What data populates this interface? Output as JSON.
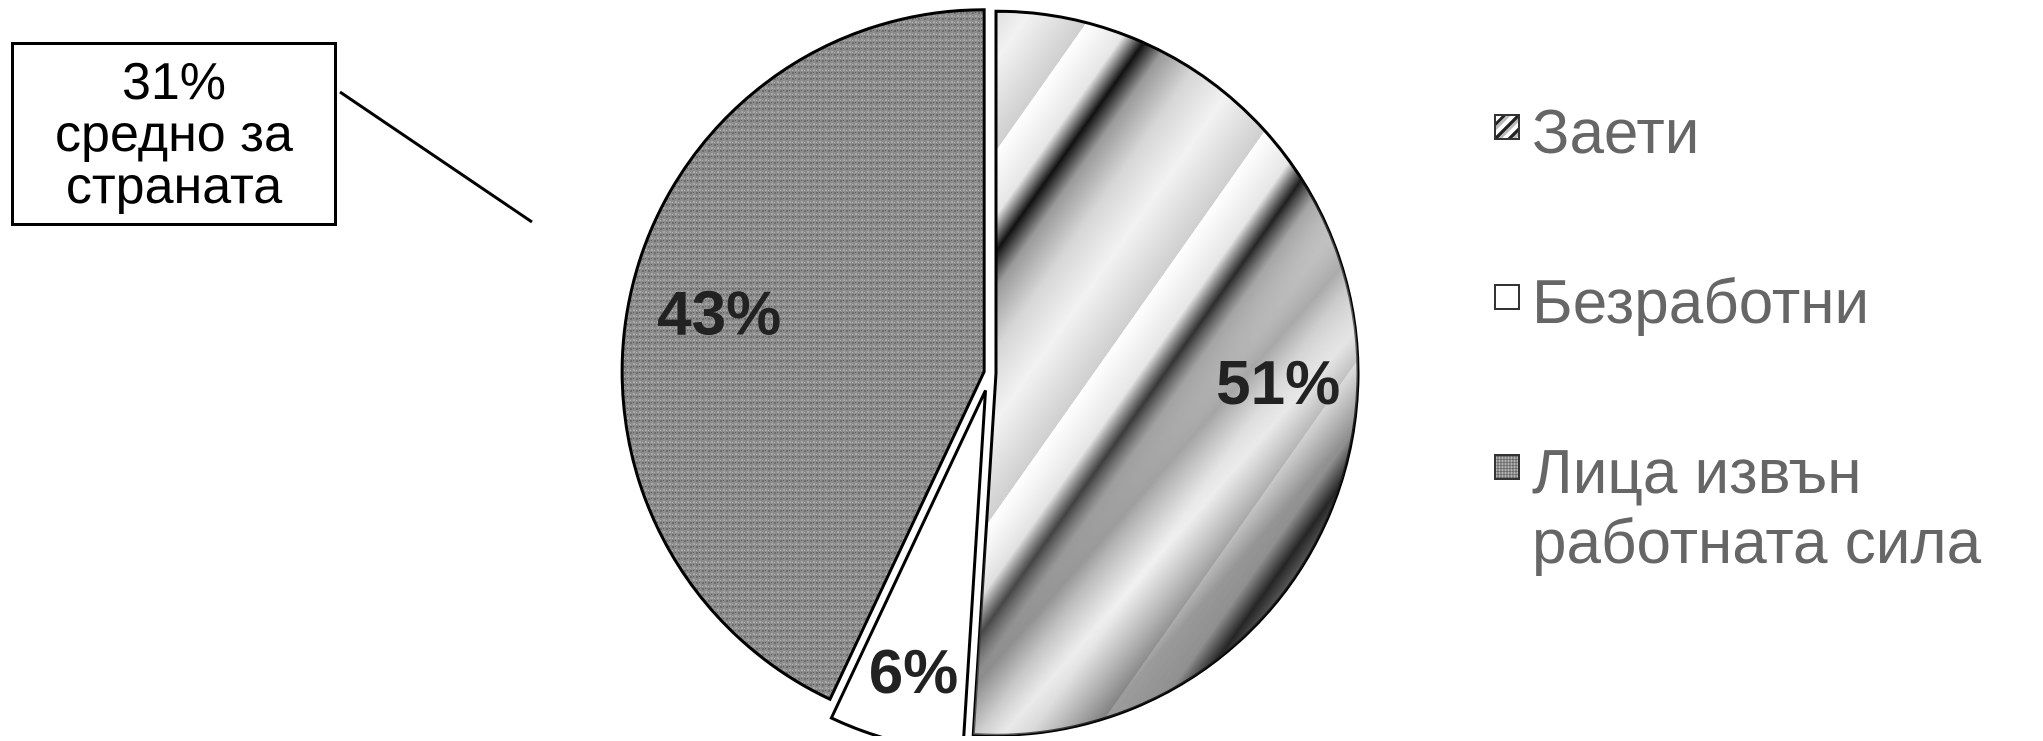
{
  "callout": {
    "lines": [
      "31%",
      "средно за",
      "страната"
    ]
  },
  "chart_data": {
    "type": "pie",
    "title": "",
    "categories": [
      "Заети",
      "Безработни",
      "Лица извън работната сила"
    ],
    "values": [
      51,
      6,
      43
    ],
    "data_labels": [
      "51%",
      "6%",
      "43%"
    ],
    "legend": {
      "placement": "right",
      "entries": [
        {
          "lines": [
            "Заети"
          ],
          "pattern": "striped-gradient"
        },
        {
          "lines": [
            "Безработни"
          ],
          "pattern": "solid-white"
        },
        {
          "lines": [
            "Лица извън",
            "работната сила"
          ],
          "pattern": "gray-texture"
        }
      ]
    },
    "exploded_slice": "Безработни",
    "start_angle": "12 o'clock",
    "direction": "clockwise"
  },
  "colors": {
    "outline": "#000000",
    "legend_text": "#666666",
    "label_text": "#222222",
    "texture_base": "#8c8c8c"
  }
}
